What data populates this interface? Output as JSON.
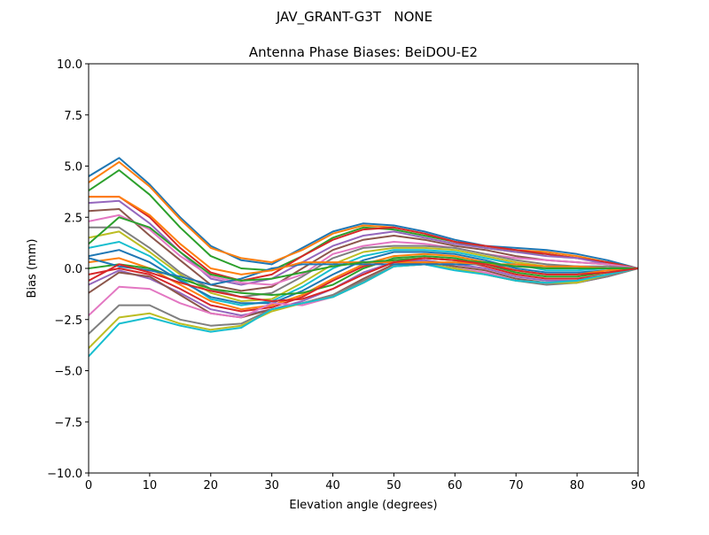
{
  "suptitle": "JAV_GRANT-G3T   NONE",
  "chart_data": {
    "type": "line",
    "title": "Antenna Phase Biases: BeiDOU-E2",
    "xlabel": "Elevation angle (degrees)",
    "ylabel": "Bias (mm)",
    "xlim": [
      0,
      90
    ],
    "ylim": [
      -10,
      10
    ],
    "grid": false,
    "legend": "none",
    "xticks": [
      0,
      10,
      20,
      30,
      40,
      50,
      60,
      70,
      80,
      90
    ],
    "xtick_labels": [
      "0",
      "10",
      "20",
      "30",
      "40",
      "50",
      "60",
      "70",
      "80",
      "90"
    ],
    "yticks": [
      -10,
      -7.5,
      -5,
      -2.5,
      0,
      2.5,
      5,
      7.5,
      10
    ],
    "ytick_labels": [
      "−10.0",
      "−7.5",
      "−5.0",
      "−2.5",
      "0.0",
      "2.5",
      "5.0",
      "7.5",
      "10.0"
    ],
    "x": [
      0,
      5,
      10,
      15,
      20,
      25,
      30,
      35,
      40,
      45,
      50,
      55,
      60,
      65,
      70,
      75,
      80,
      85,
      90
    ],
    "colors": [
      "#1f77b4",
      "#ff7f0e",
      "#2ca02c",
      "#d62728",
      "#9467bd",
      "#8c564b",
      "#e377c2",
      "#7f7f7f",
      "#bcbd22",
      "#17becf"
    ],
    "series": [
      {
        "values": [
          4.5,
          5.4,
          4.1,
          2.5,
          1.1,
          0.4,
          0.2,
          1.0,
          1.8,
          2.2,
          2.1,
          1.8,
          1.4,
          1.1,
          1.0,
          0.9,
          0.7,
          0.4,
          0
        ]
      },
      {
        "values": [
          4.2,
          5.2,
          4.0,
          2.4,
          1.0,
          0.5,
          0.3,
          0.9,
          1.7,
          2.1,
          2.0,
          1.7,
          1.3,
          1.0,
          0.9,
          0.8,
          0.6,
          0.3,
          0
        ]
      },
      {
        "values": [
          3.8,
          4.8,
          3.6,
          2.0,
          0.6,
          0.0,
          -0.1,
          0.6,
          1.5,
          2.0,
          1.9,
          1.6,
          1.3,
          1.0,
          0.8,
          0.7,
          0.5,
          0.3,
          0
        ]
      },
      {
        "values": [
          3.5,
          3.5,
          2.5,
          1.0,
          -0.2,
          -0.6,
          -0.3,
          0.6,
          1.4,
          1.9,
          2.0,
          1.7,
          1.3,
          1.1,
          0.9,
          0.7,
          0.5,
          0.3,
          0
        ]
      },
      {
        "values": [
          3.2,
          3.3,
          2.2,
          0.8,
          -0.5,
          -0.8,
          -0.5,
          0.3,
          1.1,
          1.6,
          1.8,
          1.5,
          1.2,
          1.0,
          0.8,
          0.6,
          0.5,
          0.2,
          0
        ]
      },
      {
        "values": [
          2.8,
          2.9,
          1.6,
          0.4,
          -0.8,
          -1.1,
          -0.9,
          0.0,
          0.9,
          1.4,
          1.6,
          1.4,
          1.1,
          0.9,
          0.6,
          0.4,
          0.3,
          0.2,
          0
        ]
      },
      {
        "values": [
          2.3,
          2.6,
          1.9,
          0.6,
          -0.4,
          -0.7,
          -0.8,
          -0.3,
          0.7,
          1.1,
          1.3,
          1.2,
          1.0,
          0.7,
          0.5,
          0.4,
          0.3,
          0.2,
          0
        ]
      },
      {
        "values": [
          2.0,
          2.0,
          1.0,
          -0.2,
          -1.0,
          -1.4,
          -1.2,
          -0.4,
          0.5,
          1.0,
          1.1,
          1.1,
          1.0,
          0.7,
          0.4,
          0.2,
          0.1,
          0.1,
          0
        ]
      },
      {
        "values": [
          1.5,
          1.8,
          0.8,
          -0.3,
          -1.2,
          -1.6,
          -1.5,
          -0.7,
          0.2,
          0.8,
          1.0,
          1.0,
          0.9,
          0.6,
          0.3,
          0.1,
          0.0,
          0.0,
          0
        ]
      },
      {
        "values": [
          1.0,
          1.3,
          0.6,
          -0.5,
          -1.5,
          -1.8,
          -1.6,
          -0.9,
          0.0,
          0.6,
          0.9,
          0.9,
          0.8,
          0.5,
          0.2,
          -0.1,
          -0.1,
          0.0,
          0
        ]
      },
      {
        "values": [
          0.6,
          0.9,
          0.3,
          -0.6,
          -1.4,
          -1.7,
          -1.7,
          -1.1,
          -0.3,
          0.4,
          0.8,
          0.8,
          0.7,
          0.4,
          0.0,
          -0.2,
          -0.2,
          -0.1,
          0
        ]
      },
      {
        "values": [
          0.3,
          0.5,
          0.0,
          -0.8,
          -1.6,
          -2.0,
          -1.8,
          -1.3,
          -0.5,
          0.2,
          0.6,
          0.7,
          0.6,
          0.3,
          -0.1,
          -0.3,
          -0.3,
          -0.1,
          0
        ]
      },
      {
        "values": [
          0.0,
          0.2,
          0.0,
          -0.5,
          -1.0,
          -1.2,
          -1.3,
          -1.2,
          -0.8,
          0.0,
          0.5,
          0.6,
          0.5,
          0.2,
          -0.2,
          -0.4,
          -0.4,
          -0.2,
          0
        ]
      },
      {
        "values": [
          -0.3,
          0.0,
          -0.3,
          -1.0,
          -1.8,
          -2.1,
          -1.9,
          -1.4,
          -0.6,
          0.1,
          0.4,
          0.5,
          0.4,
          0.1,
          -0.3,
          -0.5,
          -0.5,
          -0.3,
          0
        ]
      },
      {
        "values": [
          -0.8,
          -0.1,
          -0.5,
          -1.2,
          -2.0,
          -2.3,
          -2.0,
          -1.6,
          -1.0,
          -0.2,
          0.3,
          0.4,
          0.2,
          0.0,
          -0.4,
          -0.6,
          -0.6,
          -0.3,
          0
        ]
      },
      {
        "values": [
          -1.2,
          -0.2,
          -0.4,
          -1.3,
          -2.2,
          -2.4,
          -2.0,
          -1.7,
          -1.3,
          -0.5,
          0.2,
          0.3,
          0.1,
          -0.1,
          -0.5,
          -0.7,
          -0.7,
          -0.4,
          0
        ]
      },
      {
        "values": [
          -2.3,
          -0.9,
          -1.0,
          -1.7,
          -2.2,
          -2.4,
          -1.7,
          -1.8,
          -1.4,
          -0.7,
          0.1,
          0.2,
          0.0,
          -0.2,
          -0.6,
          -0.7,
          -0.7,
          -0.4,
          0
        ]
      },
      {
        "values": [
          -3.2,
          -1.8,
          -1.8,
          -2.5,
          -2.8,
          -2.7,
          -2.0,
          -1.7,
          -1.3,
          -0.6,
          0.1,
          0.2,
          0.0,
          -0.3,
          -0.6,
          -0.8,
          -0.7,
          -0.4,
          0
        ]
      },
      {
        "values": [
          -3.9,
          -2.4,
          -2.2,
          -2.7,
          -3.0,
          -2.8,
          -2.1,
          -1.7,
          -1.4,
          -0.7,
          0.1,
          0.2,
          0.0,
          -0.3,
          -0.6,
          -0.7,
          -0.7,
          -0.3,
          0
        ]
      },
      {
        "values": [
          -4.3,
          -2.7,
          -2.4,
          -2.8,
          -3.1,
          -2.9,
          -2.0,
          -1.7,
          -1.4,
          -0.7,
          0.1,
          0.2,
          -0.1,
          -0.3,
          -0.6,
          -0.7,
          -0.6,
          -0.3,
          0
        ]
      },
      {
        "values": [
          0.5,
          0.1,
          -0.1,
          -0.4,
          -0.8,
          -0.5,
          0.0,
          0.2,
          0.2,
          0.2,
          0.2,
          0.2,
          0.2,
          0.2,
          0.1,
          0.1,
          0.1,
          0.0,
          0
        ]
      },
      {
        "values": [
          3.5,
          3.5,
          2.6,
          1.2,
          0.0,
          -0.3,
          -0.1,
          0.3,
          0.3,
          0.3,
          0.3,
          0.3,
          0.3,
          0.2,
          0.2,
          0.1,
          0.1,
          0.0,
          0
        ]
      },
      {
        "values": [
          1.2,
          2.5,
          2.0,
          0.8,
          -0.3,
          -0.6,
          -0.5,
          -0.2,
          0.1,
          0.3,
          0.4,
          0.5,
          0.4,
          0.3,
          0.1,
          0.0,
          0.0,
          0.0,
          0
        ]
      },
      {
        "values": [
          -0.6,
          0.2,
          -0.2,
          -0.7,
          -1.1,
          -1.4,
          -1.6,
          -1.5,
          -1.0,
          -0.3,
          0.3,
          0.5,
          0.4,
          0.2,
          -0.1,
          -0.3,
          -0.3,
          -0.2,
          0
        ]
      }
    ]
  }
}
